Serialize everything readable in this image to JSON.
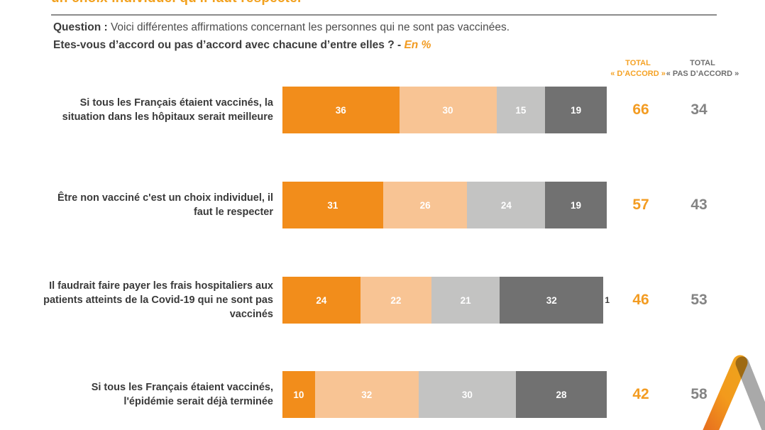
{
  "page": {
    "clipped_title": "un choix individuel qu'il faut respecter",
    "question_label": "Question :",
    "question_text": " Voici différentes affirmations concernant les personnes qui ne sont pas vaccinées.",
    "question_line2": "Etes-vous d’accord ou pas d’accord avec chacune d’entre elles ? - ",
    "question_unit": "En %"
  },
  "columns": {
    "agree_line1": "TOTAL",
    "agree_line2": "« D’ACCORD »",
    "disagree_line1": "TOTAL",
    "disagree_line2": "« PAS D’ACCORD »"
  },
  "colors": {
    "accent_orange": "#F29B20",
    "total_gray": "#848484",
    "divider_gray": "#8C8C8C",
    "logo_orange": "#EF8A1C",
    "logo_gray": "#A9A9A9"
  },
  "chart_data": {
    "type": "bar",
    "orientation": "horizontal_stacked",
    "unit": "%",
    "axis_range": [
      0,
      100
    ],
    "grid": false,
    "legend": "none_visible",
    "categories": [
      "Si tous les Français étaient vaccinés, la situation dans les hôpitaux serait meilleure",
      "Être non vacciné c'est un choix individuel, il faut le respecter",
      "Il faudrait faire payer les frais hospitaliers aux patients atteints de la Covid-19 qui ne sont pas vaccinés",
      "Si tous les Français étaient vaccinés, l'épidémie serait déjà terminée"
    ],
    "series": [
      {
        "name": "segment_1",
        "color": "#F28D1B",
        "values": [
          36,
          31,
          24,
          10
        ]
      },
      {
        "name": "segment_2",
        "color": "#F8C494",
        "values": [
          30,
          26,
          22,
          32
        ]
      },
      {
        "name": "segment_3",
        "color": "#C3C3C2",
        "values": [
          15,
          24,
          21,
          30
        ]
      },
      {
        "name": "segment_4",
        "color": "#717171",
        "values": [
          19,
          19,
          32,
          28
        ]
      },
      {
        "name": "outside_remainder",
        "color": null,
        "values": [
          0,
          0,
          1,
          0
        ]
      }
    ],
    "totals": {
      "agree": [
        66,
        57,
        46,
        42
      ],
      "disagree": [
        34,
        43,
        53,
        58
      ]
    }
  }
}
